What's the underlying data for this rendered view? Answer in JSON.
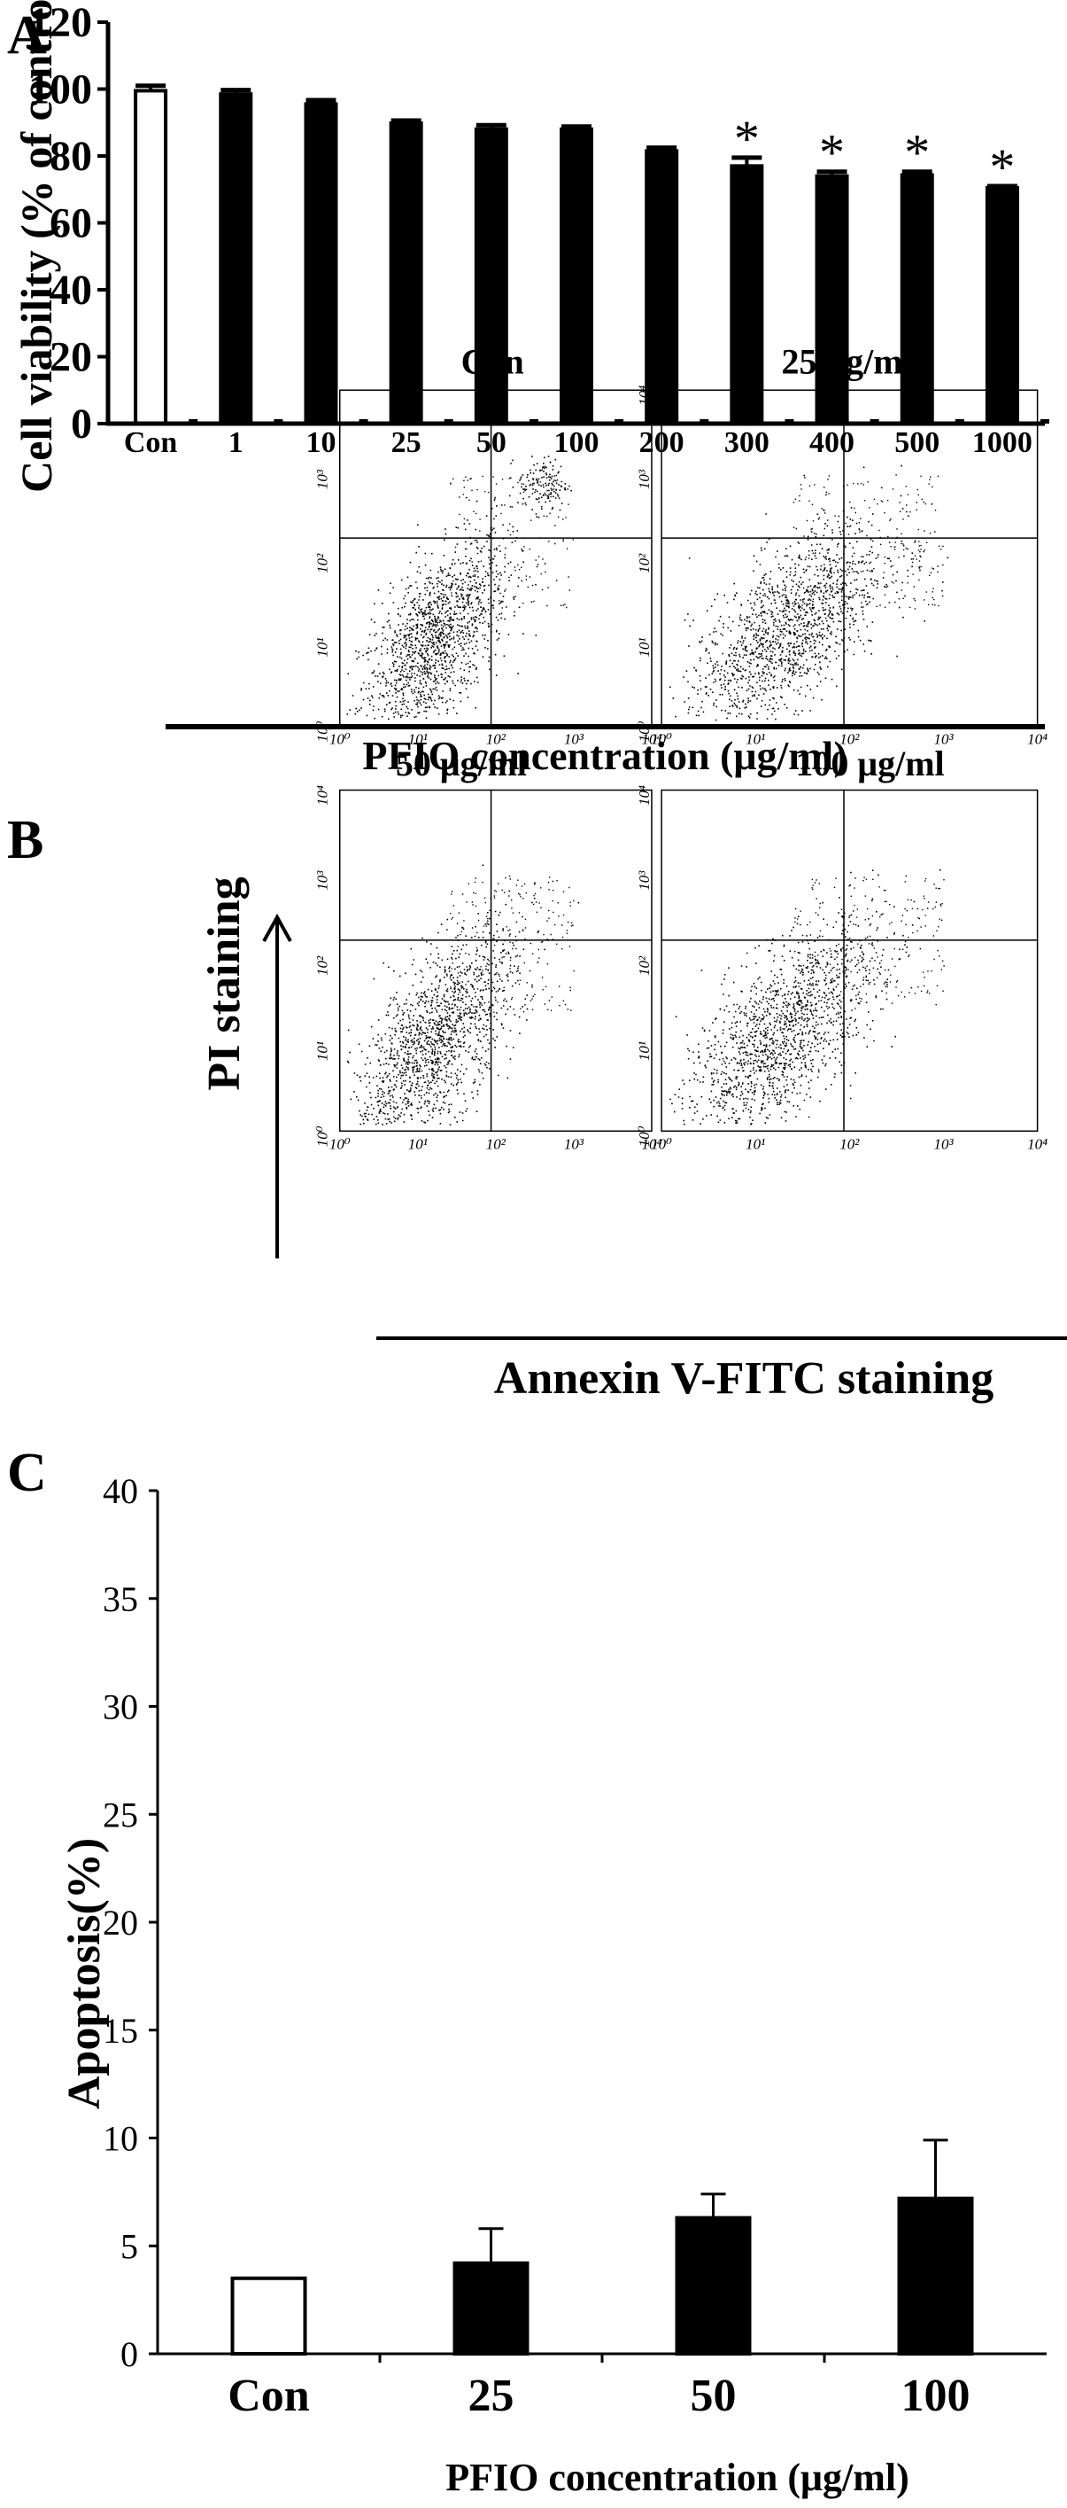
{
  "panels": {
    "A": {
      "label": "A",
      "chart_data": {
        "type": "bar",
        "title": "",
        "ylabel": "Cell viability (% of control)",
        "xlabel": "PFIO concentration (μg/ml)",
        "ylim": [
          0,
          120
        ],
        "yticks": [
          0,
          20,
          40,
          60,
          80,
          100,
          120
        ],
        "categories": [
          "Con",
          "1",
          "10",
          "25",
          "50",
          "100",
          "200",
          "300",
          "400",
          "500",
          "1000"
        ],
        "values": [
          99.5,
          98.5,
          95.5,
          89.8,
          88,
          88,
          81.5,
          77,
          74,
          74.3,
          70.5
        ],
        "errors": [
          1.5,
          1.2,
          1.2,
          0.8,
          1.2,
          0.8,
          1.0,
          2.5,
          1.3,
          1.0,
          0.5
        ],
        "fills": [
          "#ffffff",
          "#000000",
          "#000000",
          "#000000",
          "#000000",
          "#000000",
          "#000000",
          "#000000",
          "#000000",
          "#000000",
          "#000000"
        ],
        "significance": [
          "",
          "",
          "",
          "",
          "",
          "",
          "",
          "*",
          "*",
          "*",
          "*"
        ],
        "grid": false
      }
    },
    "B": {
      "label": "B",
      "y_axis_label": "PI staining",
      "x_axis_label": "Annexin V-FITC staining",
      "plots": [
        {
          "title": "Con"
        },
        {
          "title": "25 μg/ml"
        },
        {
          "title": "50 μg/ml"
        },
        {
          "title": "100 μg/ml"
        }
      ],
      "chart_data": {
        "type": "scatter",
        "xscale": "log",
        "yscale": "log",
        "xlim": [
          1,
          10000
        ],
        "ylim": [
          1,
          10000
        ],
        "tick_labels": [
          "10⁰",
          "10¹",
          "10²",
          "10³",
          "10⁴"
        ]
      }
    },
    "C": {
      "label": "C",
      "chart_data": {
        "type": "bar",
        "title": "",
        "ylabel": "Apoptosis(%)",
        "xlabel": "PFIO concentration (μg/ml)",
        "ylim": [
          0,
          40
        ],
        "yticks": [
          0,
          5,
          10,
          15,
          20,
          25,
          30,
          35,
          40
        ],
        "categories": [
          "Con",
          "25",
          "50",
          "100"
        ],
        "values": [
          3.5,
          4.2,
          6.3,
          7.2
        ],
        "errors": [
          0,
          1.6,
          1.1,
          2.7
        ],
        "fills": [
          "#ffffff",
          "#000000",
          "#000000",
          "#000000"
        ],
        "grid": false
      }
    }
  }
}
